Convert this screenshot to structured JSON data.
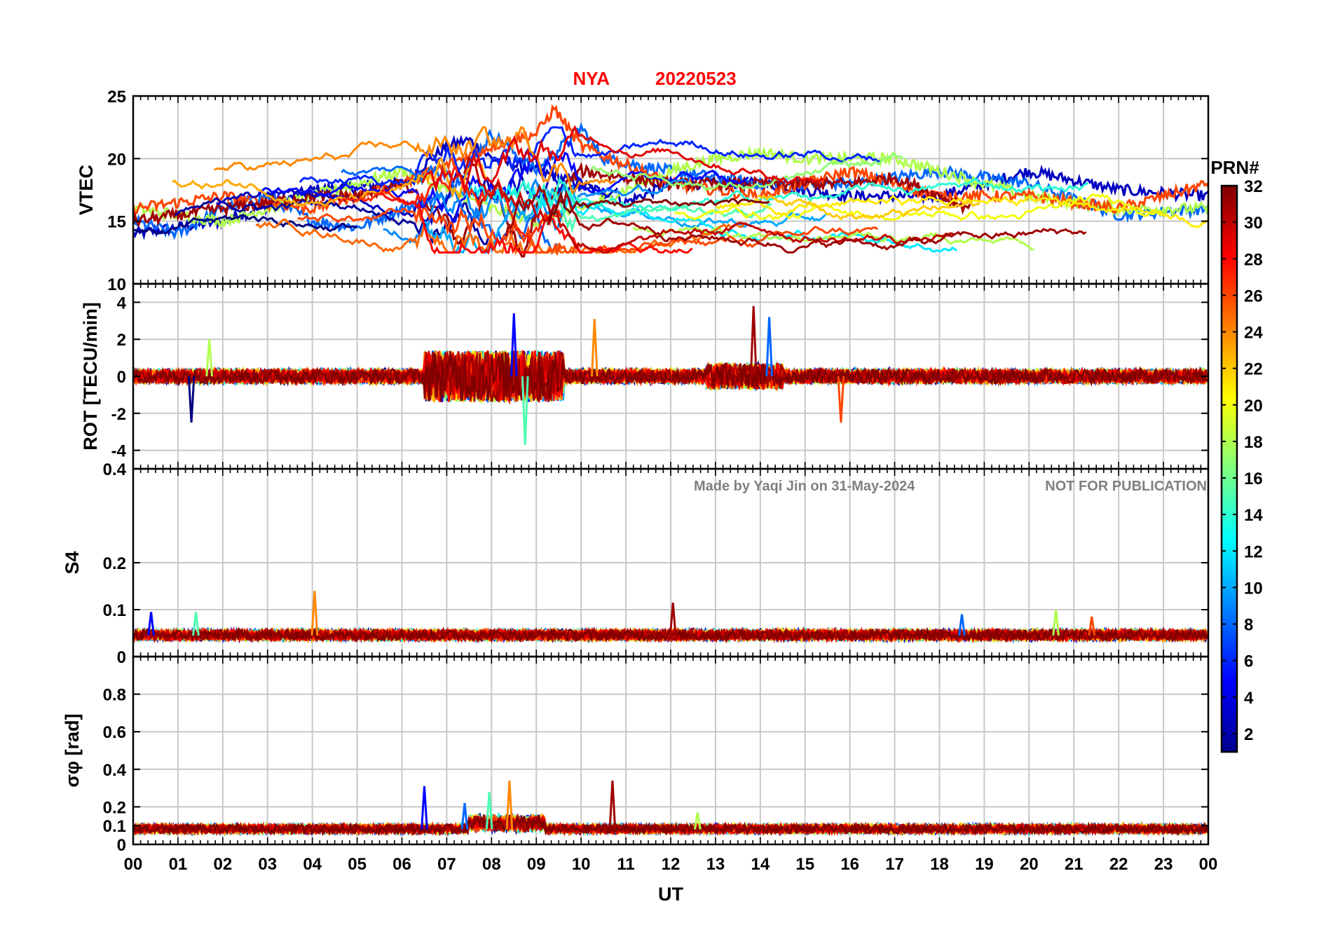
{
  "title": {
    "station": "NYA",
    "date": "20220523",
    "color": "#ff0000"
  },
  "watermark": {
    "credit": "Made by Yaqi Jin on 31-May-2024",
    "notice": "NOT FOR PUBLICATION",
    "color": "#808080"
  },
  "xaxis": {
    "label": "UT",
    "range_hours": [
      0,
      24
    ],
    "ticks": [
      "00",
      "01",
      "02",
      "03",
      "04",
      "05",
      "06",
      "07",
      "08",
      "09",
      "10",
      "11",
      "12",
      "13",
      "14",
      "15",
      "16",
      "17",
      "18",
      "19",
      "20",
      "21",
      "22",
      "23",
      "00"
    ]
  },
  "colorbar": {
    "label": "PRN#",
    "range": [
      1,
      32
    ],
    "ticks": [
      "2",
      "4",
      "6",
      "8",
      "10",
      "12",
      "14",
      "16",
      "18",
      "20",
      "22",
      "24",
      "26",
      "28",
      "30",
      "32"
    ],
    "colormap": "jet"
  },
  "chart_data": [
    {
      "type": "line",
      "panel": "vtec",
      "ylabel": "VTEC",
      "ylim": [
        10,
        25
      ],
      "yticks": [
        "10",
        "15",
        "20",
        "25"
      ],
      "series_summary": "Multiple GNSS PRN tracks, colored by PRN (1-32); values mostly 13-21 TECU, peaking ~24 near 09:20 UT, minimum ~12 near 08:45 UT",
      "representative_series": [
        {
          "prn": 3,
          "x": [
            0,
            2,
            4,
            6,
            7,
            7.5,
            8,
            9,
            10,
            11,
            12,
            14,
            16,
            18,
            20,
            22,
            24
          ],
          "y": [
            14,
            15,
            17.5,
            18,
            21,
            21.5,
            20,
            19,
            18,
            16.5,
            18,
            18,
            17,
            17,
            19,
            17.5,
            17
          ]
        },
        {
          "prn": 8,
          "x": [
            0,
            1,
            2,
            3,
            4,
            5,
            6,
            7,
            8,
            9,
            10,
            10.5,
            12,
            14,
            16,
            18,
            20,
            22,
            24
          ],
          "y": [
            15,
            14,
            16,
            17,
            15,
            14.5,
            16,
            17,
            22,
            19,
            22.5,
            20,
            19,
            18,
            18,
            19,
            18,
            15.5,
            16
          ]
        },
        {
          "prn": 18,
          "x": [
            0,
            2,
            4,
            6,
            8,
            9,
            10,
            12,
            13,
            14,
            15,
            16,
            17,
            18,
            20,
            22,
            24
          ],
          "y": [
            16,
            15,
            17,
            19,
            16,
            15,
            16,
            19,
            20,
            20.5,
            20,
            20,
            20,
            19,
            17,
            16,
            16
          ]
        },
        {
          "prn": 26,
          "x": [
            0,
            2,
            4,
            6,
            8,
            9,
            9.4,
            10,
            12,
            14,
            16,
            18,
            20,
            22,
            24
          ],
          "y": [
            16,
            17,
            16,
            18,
            21,
            22,
            24,
            21,
            18,
            17,
            19,
            17,
            17,
            16,
            18
          ]
        },
        {
          "prn": 31,
          "x": [
            0,
            2,
            4,
            5,
            6,
            7,
            7.3,
            8,
            8.7,
            9,
            10,
            12,
            14,
            16,
            17,
            18,
            18.7
          ],
          "y": [
            15,
            16,
            17,
            17,
            18,
            15,
            13,
            18,
            12,
            16,
            19,
            18,
            18,
            18,
            18.5,
            17,
            16
          ]
        }
      ]
    },
    {
      "type": "line",
      "panel": "rot",
      "ylabel": "ROT [TECU/min]",
      "ylim": [
        -5,
        5
      ],
      "yticks": [
        "-4",
        "-2",
        "0",
        "2",
        "4"
      ],
      "series_summary": "ROT fluctuations around 0 for all PRNs; enhanced activity 06:30-09:30 UT reaching about +3.4 and -3.7; isolated spikes ~3.8 near 13:50 UT and ~3.2 near 14:10 UT",
      "peaks": [
        {
          "x": 8.5,
          "y": 3.4
        },
        {
          "x": 8.75,
          "y": -3.7
        },
        {
          "x": 10.3,
          "y": 3.1
        },
        {
          "x": 13.85,
          "y": 3.8
        },
        {
          "x": 14.2,
          "y": 3.2
        },
        {
          "x": 1.7,
          "y": 2.0
        },
        {
          "x": 15.8,
          "y": -2.5
        },
        {
          "x": 1.3,
          "y": -2.5
        }
      ]
    },
    {
      "type": "line",
      "panel": "s4",
      "ylabel": "S4",
      "ylim": [
        0,
        0.4
      ],
      "yticks": [
        "0",
        "0.1",
        "0.2",
        "0.4"
      ],
      "series_summary": "S4 amplitude scintillation index near 0.03-0.06 for all PRNs; spikes 0.14 near 04:05 UT, 0.115 near 12:05 UT, 0.10 near 20:35 UT",
      "peaks": [
        {
          "x": 0.4,
          "y": 0.095
        },
        {
          "x": 1.4,
          "y": 0.095
        },
        {
          "x": 4.05,
          "y": 0.14
        },
        {
          "x": 12.05,
          "y": 0.115
        },
        {
          "x": 18.5,
          "y": 0.09
        },
        {
          "x": 20.6,
          "y": 0.1
        },
        {
          "x": 21.4,
          "y": 0.085
        }
      ]
    },
    {
      "type": "line",
      "panel": "sigma_phi",
      "ylabel": "σφ [rad]",
      "ylim": [
        0,
        1
      ],
      "yticks": [
        "0",
        "0.1",
        "0.2",
        "0.4",
        "0.6",
        "0.8"
      ],
      "series_summary": "Phase scintillation index mostly 0.04-0.1 rad; spikes ~0.31 at 06:30 UT, ~0.28 near 08:00 UT, ~0.34 near 08:30 UT, ~0.34 near 10:40 UT",
      "peaks": [
        {
          "x": 6.5,
          "y": 0.31
        },
        {
          "x": 7.95,
          "y": 0.28
        },
        {
          "x": 8.4,
          "y": 0.34
        },
        {
          "x": 10.7,
          "y": 0.34
        },
        {
          "x": 7.4,
          "y": 0.22
        },
        {
          "x": 12.6,
          "y": 0.17
        }
      ]
    }
  ]
}
